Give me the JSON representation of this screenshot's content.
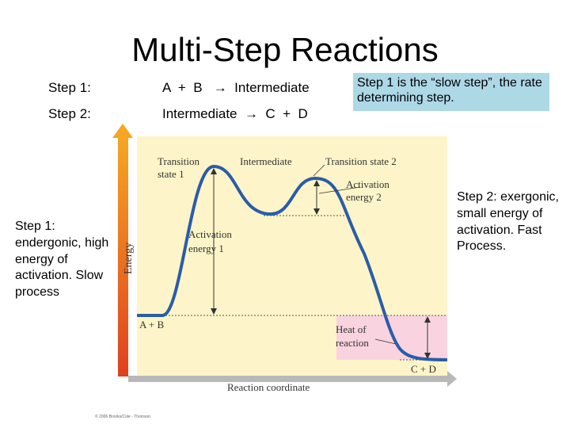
{
  "slide": {
    "title": "Multi-Step Reactions",
    "steps": [
      {
        "label": "Step 1:",
        "equation": "A  +  B   →  Intermediate"
      },
      {
        "label": "Step 2:",
        "equation": "Intermediate  →  C  +  D"
      }
    ],
    "slow_step_note": "Step 1 is the “slow step”, the rate determining step.",
    "step1_note": "Step 1: endergonic, high energy of activation. Slow process",
    "step2_note": "Step 2: exergonic, small energy of activation. Fast Process."
  },
  "diagram": {
    "y_axis_label": "Energy",
    "x_axis_label": "Reaction coordinate",
    "transition_state_1": [
      "Transition",
      "state 1"
    ],
    "intermediate": "Intermediate",
    "transition_state_2": "Transition state 2",
    "activation_energy_1": [
      "Activation",
      "energy 1"
    ],
    "activation_energy_2": [
      "Activation",
      "energy 2"
    ],
    "heat_of_reaction": [
      "Heat of",
      "reaction"
    ],
    "reactants": "A + B",
    "products": "C + D",
    "copyright": "© 2006 Brooks/Cole - Thomson",
    "colors": {
      "curve": "#2b5ca8",
      "fill": "#fdf5c9",
      "product_zone": "#f9d3df",
      "energy_arrow": "#e8532a"
    }
  }
}
